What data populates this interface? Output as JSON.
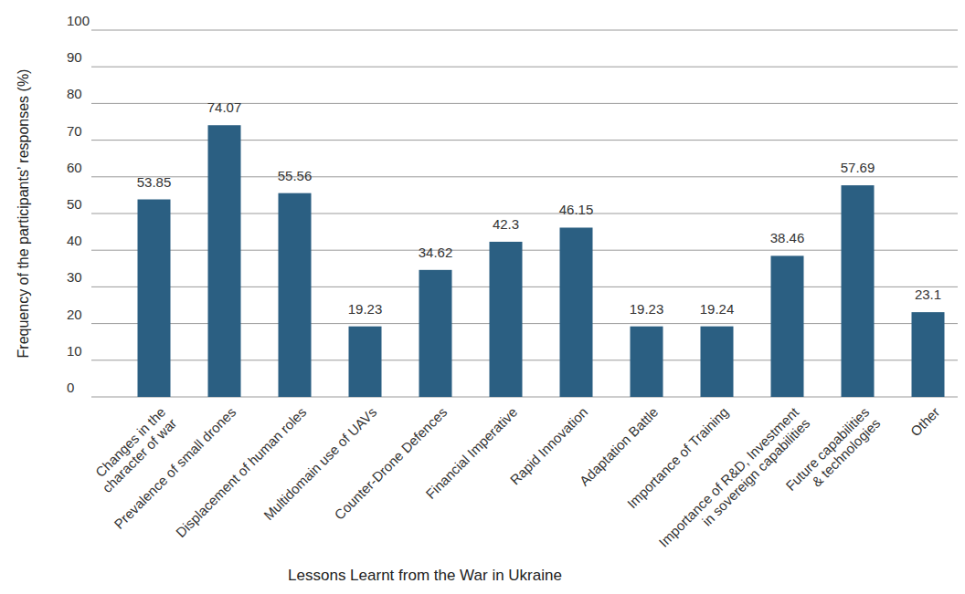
{
  "chart_data": {
    "type": "bar",
    "x_label": "Lessons Learnt from the War in Ukraine",
    "y_label": "Frequency of the participants’ responses (%)",
    "categories": [
      "Changes in the\ncharacter of war",
      "Prevalence of small drones",
      "Displacement of human roles",
      "Multidomain use of UAVs",
      "Counter-Drone Defences",
      "Financial Imperative",
      "Rapid Innovation",
      "Adaptation Battle",
      "Importance of Training",
      "Importance of R&D, Investment\nin sovereign capabilities",
      "Future capabilities\n& technologies",
      "Other"
    ],
    "values": [
      53.85,
      74.07,
      55.56,
      19.23,
      34.62,
      42.3,
      46.15,
      19.23,
      19.24,
      38.46,
      57.69,
      23.1
    ],
    "color": "#2b5f82",
    "ylim": [
      0,
      100
    ],
    "yticks": [
      0,
      10,
      20,
      30,
      40,
      50,
      60,
      70,
      80,
      90,
      100
    ],
    "grid": true,
    "data_labels": true
  }
}
